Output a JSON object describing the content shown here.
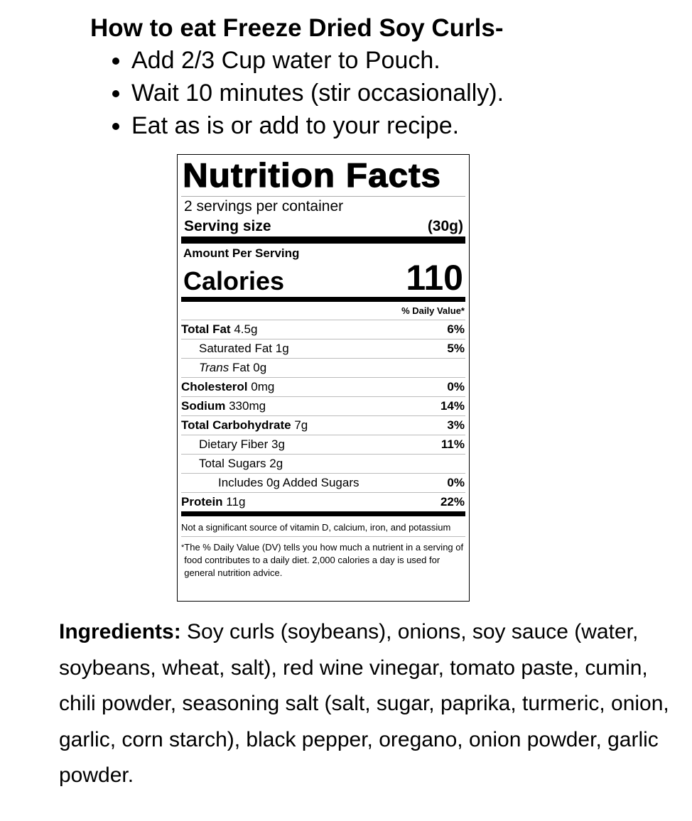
{
  "instructions": {
    "title": "How to eat Freeze Dried Soy Curls-",
    "steps": [
      "Add 2/3 Cup water to Pouch.",
      "Wait 10 minutes (stir occasionally).",
      "Eat as is or add to your recipe."
    ]
  },
  "label": {
    "title": "Nutrition Facts",
    "servings": "2 servings per container",
    "serving_size_label": "Serving size",
    "serving_size": "(30g)",
    "amount_per_serving": "Amount Per Serving",
    "calories_label": "Calories",
    "calories": "110",
    "dv_header": "% Daily Value*",
    "nutrients": [
      {
        "name": "Total Fat",
        "amount": "4.5g",
        "dv": "6%"
      },
      {
        "name": "Saturated Fat",
        "amount": "1g",
        "dv": "5%"
      },
      {
        "name": "Trans",
        "name2": "Fat",
        "amount": "0g",
        "dv": ""
      },
      {
        "name": "Cholesterol",
        "amount": "0mg",
        "dv": "0%"
      },
      {
        "name": "Sodium",
        "amount": "330mg",
        "dv": "14%"
      },
      {
        "name": "Total Carbohydrate",
        "amount": "7g",
        "dv": "3%"
      },
      {
        "name": "Dietary Fiber",
        "amount": "3g",
        "dv": "11%"
      },
      {
        "name": "Total Sugars",
        "amount": "2g",
        "dv": ""
      },
      {
        "name": "Includes 0g Added Sugars",
        "amount": "",
        "dv": "0%"
      },
      {
        "name": "Protein",
        "amount": "11g",
        "dv": "22%"
      }
    ],
    "footnote1": "Not a significant source of vitamin D, calcium, iron, and potassium",
    "footnote_star": "*",
    "footnote2": "The % Daily Value (DV) tells you how much a nutrient in a serving of food contributes to a daily diet. 2,000 calories a day is used for general nutrition advice."
  },
  "ingredients": {
    "label": "Ingredients:",
    "text": " Soy curls (soybeans), onions, soy sauce (water, soybeans, wheat, salt), red wine vinegar, tomato paste, cumin, chili powder, seasoning salt (salt, sugar, paprika, turmeric, onion, garlic, corn starch), black pepper, oregano, onion powder, garlic powder."
  }
}
